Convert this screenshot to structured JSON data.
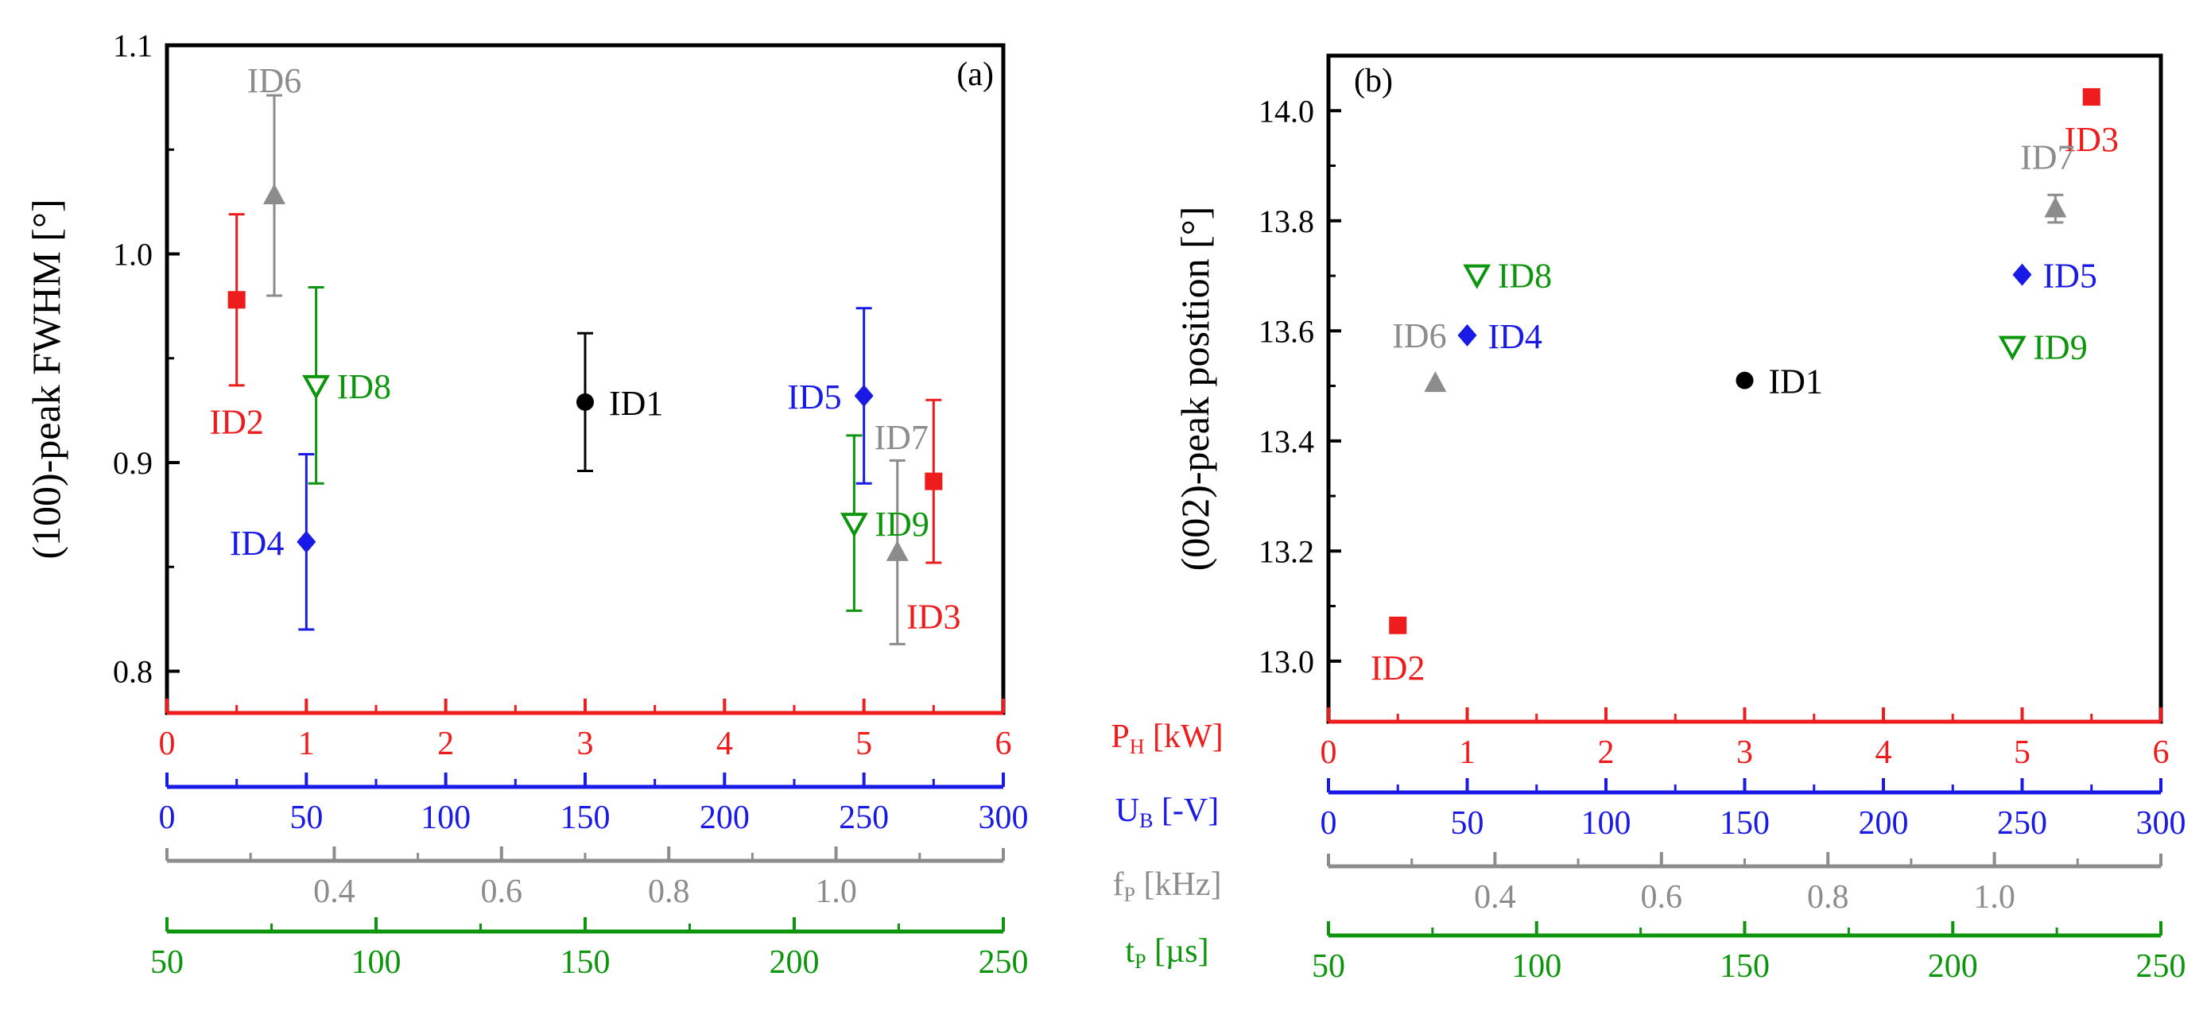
{
  "colors": {
    "ph": "#ee1c1c",
    "ub": "#1a1ae6",
    "fp": "#8c8c8c",
    "tp": "#0d960d",
    "black": "#000000"
  },
  "axis_titles": {
    "ph": {
      "main": "P",
      "sub": "H",
      "unit": " [kW]"
    },
    "ub": {
      "main": "U",
      "sub": "B",
      "unit": " [-V]"
    },
    "fp": {
      "main": "f",
      "sub": "P",
      "unit": " [kHz]"
    },
    "tp": {
      "main": "t",
      "sub": "P",
      "unit": " [µs]"
    }
  },
  "chart_data": [
    {
      "panel": "a",
      "type": "scatter",
      "panel_label": "(a)",
      "ylabel": "(100)-peak FWHM [°]",
      "ylim": [
        0.78,
        1.1
      ],
      "yticks": [
        0.8,
        0.9,
        1.0,
        1.1
      ],
      "ytick_labels": [
        "0.8",
        "0.9",
        "1.0",
        "1.1"
      ],
      "x_axes": {
        "ph": {
          "range": [
            0,
            6
          ],
          "ticks": [
            0,
            1,
            2,
            3,
            4,
            5,
            6
          ],
          "labels": [
            "0",
            "1",
            "2",
            "3",
            "4",
            "5",
            "6"
          ]
        },
        "ub": {
          "range": [
            0,
            300
          ],
          "ticks": [
            0,
            50,
            100,
            150,
            200,
            250,
            300
          ],
          "labels": [
            "0",
            "50",
            "100",
            "150",
            "200",
            "250",
            "300"
          ]
        },
        "fp": {
          "range": [
            0.2,
            1.2
          ],
          "ticks": [
            0.4,
            0.6,
            0.8,
            1.0
          ],
          "labels": [
            "0.4",
            "0.6",
            "0.8",
            "1.0"
          ]
        },
        "tp": {
          "range": [
            50,
            250
          ],
          "ticks": [
            50,
            100,
            150,
            200,
            250
          ],
          "labels": [
            "50",
            "100",
            "150",
            "200",
            "250"
          ]
        }
      },
      "points": [
        {
          "id": "ID1",
          "marker": "circle",
          "color": "black",
          "x": 3.0,
          "y": 0.929,
          "err": 0.033
        },
        {
          "id": "ID2",
          "marker": "square",
          "color": "ph",
          "x": 0.5,
          "y": 0.978,
          "err": 0.041
        },
        {
          "id": "ID3",
          "marker": "square",
          "color": "ph",
          "x": 5.5,
          "y": 0.891,
          "err": 0.039
        },
        {
          "id": "ID4",
          "marker": "diamond",
          "color": "ub",
          "x": 1.0,
          "y": 0.862,
          "err": 0.042
        },
        {
          "id": "ID5",
          "marker": "diamond",
          "color": "ub",
          "x": 5.0,
          "y": 0.932,
          "err": 0.042
        },
        {
          "id": "ID6",
          "marker": "triangle",
          "color": "fp",
          "x": 0.77,
          "y": 1.028,
          "err": 0.048
        },
        {
          "id": "ID7",
          "marker": "triangle",
          "color": "fp",
          "x": 5.24,
          "y": 0.857,
          "err": 0.044
        },
        {
          "id": "ID8",
          "marker": "triangle-down-open",
          "color": "tp",
          "x": 1.07,
          "y": 0.937,
          "err": 0.047
        },
        {
          "id": "ID9",
          "marker": "triangle-down-open",
          "color": "tp",
          "x": 4.93,
          "y": 0.871,
          "err": 0.042
        }
      ]
    },
    {
      "panel": "b",
      "type": "scatter",
      "panel_label": "(b)",
      "ylabel": "(002)-peak position [°]",
      "ylim": [
        12.89,
        14.1
      ],
      "yticks": [
        13.0,
        13.2,
        13.4,
        13.6,
        13.8,
        14.0
      ],
      "ytick_labels": [
        "13.0",
        "13.2",
        "13.4",
        "13.6",
        "13.8",
        "14.0"
      ],
      "x_axes": {
        "ph": {
          "range": [
            0,
            6
          ],
          "ticks": [
            0,
            1,
            2,
            3,
            4,
            5,
            6
          ],
          "labels": [
            "0",
            "1",
            "2",
            "3",
            "4",
            "5",
            "6"
          ]
        },
        "ub": {
          "range": [
            0,
            300
          ],
          "ticks": [
            0,
            50,
            100,
            150,
            200,
            250,
            300
          ],
          "labels": [
            "0",
            "50",
            "100",
            "150",
            "200",
            "250",
            "300"
          ]
        },
        "fp": {
          "range": [
            0.2,
            1.2
          ],
          "ticks": [
            0.4,
            0.6,
            0.8,
            1.0
          ],
          "labels": [
            "0.4",
            "0.6",
            "0.8",
            "1.0"
          ]
        },
        "tp": {
          "range": [
            50,
            250
          ],
          "ticks": [
            50,
            100,
            150,
            200,
            250
          ],
          "labels": [
            "50",
            "100",
            "150",
            "200",
            "250"
          ]
        }
      },
      "points": [
        {
          "id": "ID1",
          "marker": "circle",
          "color": "black",
          "x": 3.0,
          "y": 13.51,
          "err": 0
        },
        {
          "id": "ID2",
          "marker": "square",
          "color": "ph",
          "x": 0.5,
          "y": 13.065,
          "err": 0
        },
        {
          "id": "ID3",
          "marker": "square",
          "color": "ph",
          "x": 5.5,
          "y": 14.025,
          "err": 0
        },
        {
          "id": "ID4",
          "marker": "diamond",
          "color": "ub",
          "x": 1.0,
          "y": 13.592,
          "err": 0
        },
        {
          "id": "ID5",
          "marker": "diamond",
          "color": "ub",
          "x": 5.0,
          "y": 13.702,
          "err": 0
        },
        {
          "id": "ID6",
          "marker": "triangle",
          "color": "fp",
          "x": 0.77,
          "y": 13.505,
          "err": 0
        },
        {
          "id": "ID7",
          "marker": "triangle",
          "color": "fp",
          "x": 5.24,
          "y": 13.822,
          "err": 0.025
        },
        {
          "id": "ID8",
          "marker": "triangle-down-open",
          "color": "tp",
          "x": 1.07,
          "y": 13.702,
          "err": 0
        },
        {
          "id": "ID9",
          "marker": "triangle-down-open",
          "color": "tp",
          "x": 4.93,
          "y": 13.572,
          "err": 0
        }
      ]
    }
  ]
}
